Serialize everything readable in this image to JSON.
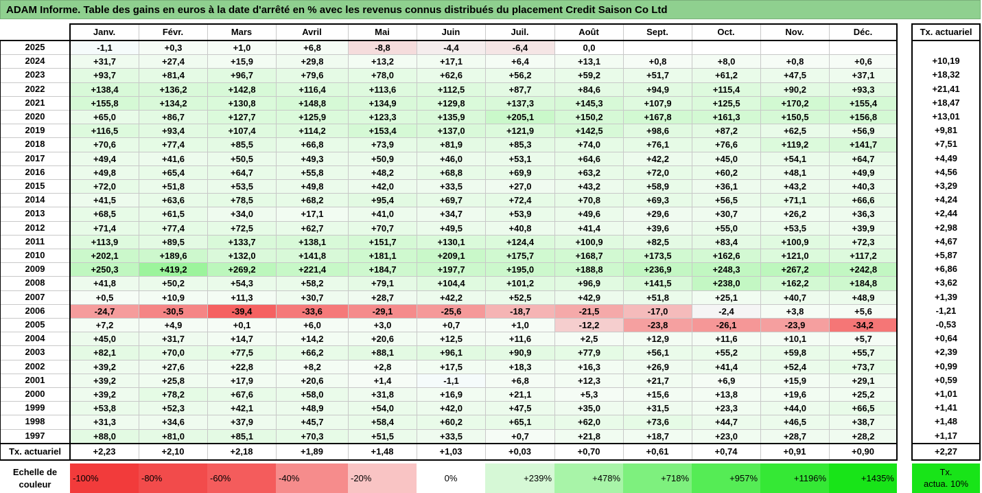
{
  "title": "ADAM Informe. Table des gains en euros à la date d'arrêté en % avec les revenus connus distribués du placement Credit Saison Co Ltd",
  "months": [
    "Janv.",
    "Févr.",
    "Mars",
    "Avril",
    "Mai",
    "Juin",
    "Juil.",
    "Août",
    "Sept.",
    "Oct.",
    "Nov.",
    "Déc."
  ],
  "rate_header": "Tx. actuariel",
  "rows": [
    {
      "year": "2025",
      "v": [
        "-1,1",
        "+0,3",
        "+1,0",
        "+6,8",
        "-8,8",
        "-4,4",
        "-6,4",
        "0,0",
        "",
        "",
        "",
        ""
      ],
      "r": ""
    },
    {
      "year": "2024",
      "v": [
        "+31,7",
        "+27,4",
        "+15,9",
        "+29,8",
        "+13,2",
        "+17,1",
        "+6,4",
        "+13,1",
        "+0,8",
        "+8,0",
        "+0,8",
        "+0,6"
      ],
      "r": "+10,19"
    },
    {
      "year": "2023",
      "v": [
        "+93,7",
        "+81,4",
        "+96,7",
        "+79,6",
        "+78,0",
        "+62,6",
        "+56,2",
        "+59,2",
        "+51,7",
        "+61,2",
        "+47,5",
        "+37,1"
      ],
      "r": "+18,32"
    },
    {
      "year": "2022",
      "v": [
        "+138,4",
        "+136,2",
        "+142,8",
        "+116,4",
        "+113,6",
        "+112,5",
        "+87,7",
        "+84,6",
        "+94,9",
        "+115,4",
        "+90,2",
        "+93,3"
      ],
      "r": "+21,41"
    },
    {
      "year": "2021",
      "v": [
        "+155,8",
        "+134,2",
        "+130,8",
        "+148,8",
        "+134,9",
        "+129,8",
        "+137,3",
        "+145,3",
        "+107,9",
        "+125,5",
        "+170,2",
        "+155,4"
      ],
      "r": "+18,47"
    },
    {
      "year": "2020",
      "v": [
        "+65,0",
        "+86,7",
        "+127,7",
        "+125,9",
        "+123,3",
        "+135,9",
        "+205,1",
        "+150,2",
        "+167,8",
        "+161,3",
        "+150,5",
        "+156,8"
      ],
      "r": "+13,01"
    },
    {
      "year": "2019",
      "v": [
        "+116,5",
        "+93,4",
        "+107,4",
        "+114,2",
        "+153,4",
        "+137,0",
        "+121,9",
        "+142,5",
        "+98,6",
        "+87,2",
        "+62,5",
        "+56,9"
      ],
      "r": "+9,81"
    },
    {
      "year": "2018",
      "v": [
        "+70,6",
        "+77,4",
        "+85,5",
        "+66,8",
        "+73,9",
        "+81,9",
        "+85,3",
        "+74,0",
        "+76,1",
        "+76,6",
        "+119,2",
        "+141,7"
      ],
      "r": "+7,51"
    },
    {
      "year": "2017",
      "v": [
        "+49,4",
        "+41,6",
        "+50,5",
        "+49,3",
        "+50,9",
        "+46,0",
        "+53,1",
        "+64,6",
        "+42,2",
        "+45,0",
        "+54,1",
        "+64,7"
      ],
      "r": "+4,49"
    },
    {
      "year": "2016",
      "v": [
        "+49,8",
        "+65,4",
        "+64,7",
        "+55,8",
        "+48,2",
        "+68,8",
        "+69,9",
        "+63,2",
        "+72,0",
        "+60,2",
        "+48,1",
        "+49,9"
      ],
      "r": "+4,56"
    },
    {
      "year": "2015",
      "v": [
        "+72,0",
        "+51,8",
        "+53,5",
        "+49,8",
        "+42,0",
        "+33,5",
        "+27,0",
        "+43,2",
        "+58,9",
        "+36,1",
        "+43,2",
        "+40,3"
      ],
      "r": "+3,29"
    },
    {
      "year": "2014",
      "v": [
        "+41,5",
        "+63,6",
        "+78,5",
        "+68,2",
        "+95,4",
        "+69,7",
        "+72,4",
        "+70,8",
        "+69,3",
        "+56,5",
        "+71,1",
        "+66,6"
      ],
      "r": "+4,24"
    },
    {
      "year": "2013",
      "v": [
        "+68,5",
        "+61,5",
        "+34,0",
        "+17,1",
        "+41,0",
        "+34,7",
        "+53,9",
        "+49,6",
        "+29,6",
        "+30,7",
        "+26,2",
        "+36,3"
      ],
      "r": "+2,44"
    },
    {
      "year": "2012",
      "v": [
        "+71,4",
        "+77,4",
        "+72,5",
        "+62,7",
        "+70,7",
        "+49,5",
        "+40,8",
        "+41,4",
        "+39,6",
        "+55,0",
        "+53,5",
        "+39,9"
      ],
      "r": "+2,98"
    },
    {
      "year": "2011",
      "v": [
        "+113,9",
        "+89,5",
        "+133,7",
        "+138,1",
        "+151,7",
        "+130,1",
        "+124,4",
        "+100,9",
        "+82,5",
        "+83,4",
        "+100,9",
        "+72,3"
      ],
      "r": "+4,67"
    },
    {
      "year": "2010",
      "v": [
        "+202,1",
        "+189,6",
        "+132,0",
        "+141,8",
        "+181,1",
        "+209,1",
        "+175,7",
        "+168,7",
        "+173,5",
        "+162,6",
        "+121,0",
        "+117,2"
      ],
      "r": "+5,87"
    },
    {
      "year": "2009",
      "v": [
        "+250,3",
        "+419,2",
        "+269,2",
        "+221,4",
        "+184,7",
        "+197,7",
        "+195,0",
        "+188,8",
        "+236,9",
        "+248,3",
        "+267,2",
        "+242,8"
      ],
      "r": "+6,86"
    },
    {
      "year": "2008",
      "v": [
        "+41,8",
        "+50,2",
        "+54,3",
        "+58,2",
        "+79,1",
        "+104,4",
        "+101,2",
        "+96,9",
        "+141,5",
        "+238,0",
        "+162,2",
        "+184,8"
      ],
      "r": "+3,62"
    },
    {
      "year": "2007",
      "v": [
        "+0,5",
        "+10,9",
        "+11,3",
        "+30,7",
        "+28,7",
        "+42,2",
        "+52,5",
        "+42,9",
        "+51,8",
        "+25,1",
        "+40,7",
        "+48,9"
      ],
      "r": "+1,39"
    },
    {
      "year": "2006",
      "v": [
        "-24,7",
        "-30,5",
        "-39,4",
        "-33,6",
        "-29,1",
        "-25,6",
        "-18,7",
        "-21,5",
        "-17,0",
        "-2,4",
        "+3,8",
        "+5,6"
      ],
      "r": "-1,21"
    },
    {
      "year": "2005",
      "v": [
        "+7,2",
        "+4,9",
        "+0,1",
        "+6,0",
        "+3,0",
        "+0,7",
        "+1,0",
        "-12,2",
        "-23,8",
        "-26,1",
        "-23,9",
        "-34,2"
      ],
      "r": "-0,53"
    },
    {
      "year": "2004",
      "v": [
        "+45,0",
        "+31,7",
        "+14,7",
        "+14,2",
        "+20,6",
        "+12,5",
        "+11,6",
        "+2,5",
        "+12,9",
        "+11,6",
        "+10,1",
        "+5,7"
      ],
      "r": "+0,64"
    },
    {
      "year": "2003",
      "v": [
        "+82,1",
        "+70,0",
        "+77,5",
        "+66,2",
        "+88,1",
        "+96,1",
        "+90,9",
        "+77,9",
        "+56,1",
        "+55,2",
        "+59,8",
        "+55,7"
      ],
      "r": "+2,39"
    },
    {
      "year": "2002",
      "v": [
        "+39,2",
        "+27,6",
        "+22,8",
        "+8,2",
        "+2,8",
        "+17,5",
        "+18,3",
        "+16,3",
        "+26,9",
        "+41,4",
        "+52,4",
        "+73,7"
      ],
      "r": "+0,99"
    },
    {
      "year": "2001",
      "v": [
        "+39,2",
        "+25,8",
        "+17,9",
        "+20,6",
        "+1,4",
        "-1,1",
        "+6,8",
        "+12,3",
        "+21,7",
        "+6,9",
        "+15,9",
        "+29,1"
      ],
      "r": "+0,59"
    },
    {
      "year": "2000",
      "v": [
        "+39,2",
        "+78,2",
        "+67,6",
        "+58,0",
        "+31,8",
        "+16,9",
        "+21,1",
        "+5,3",
        "+15,6",
        "+13,8",
        "+19,6",
        "+25,2"
      ],
      "r": "+1,01"
    },
    {
      "year": "1999",
      "v": [
        "+53,8",
        "+52,3",
        "+42,1",
        "+48,9",
        "+54,0",
        "+42,0",
        "+47,5",
        "+35,0",
        "+31,5",
        "+23,3",
        "+44,0",
        "+66,5"
      ],
      "r": "+1,41"
    },
    {
      "year": "1998",
      "v": [
        "+31,3",
        "+34,6",
        "+37,9",
        "+45,7",
        "+58,4",
        "+60,2",
        "+65,1",
        "+62,0",
        "+73,6",
        "+44,7",
        "+46,5",
        "+38,7"
      ],
      "r": "+1,48"
    },
    {
      "year": "1997",
      "v": [
        "+88,0",
        "+81,0",
        "+85,1",
        "+70,3",
        "+51,5",
        "+33,5",
        "+0,7",
        "+21,8",
        "+18,7",
        "+23,0",
        "+28,7",
        "+28,2"
      ],
      "r": "+1,17"
    }
  ],
  "summary": {
    "label": "Tx. actuariel",
    "v": [
      "+2,23",
      "+2,10",
      "+2,18",
      "+1,89",
      "+1,48",
      "+1,03",
      "+0,03",
      "+0,70",
      "+0,61",
      "+0,74",
      "+0,91",
      "+0,90"
    ],
    "r": "+2,27"
  },
  "scale": {
    "label_line1": "Echelle de",
    "label_line2": "couleur",
    "items": [
      {
        "text": "-100%",
        "color": "#f23b3b",
        "align": "left"
      },
      {
        "text": "-80%",
        "color": "#f24b4b",
        "align": "left"
      },
      {
        "text": "-60%",
        "color": "#f45c5c",
        "align": "left"
      },
      {
        "text": "-40%",
        "color": "#f68c8c",
        "align": "left"
      },
      {
        "text": "-20%",
        "color": "#f9c4c4",
        "align": "left"
      },
      {
        "text": "0%",
        "color": "#ffffff",
        "align": "center"
      },
      {
        "text": "+239%",
        "color": "#d6f8d6",
        "align": "right"
      },
      {
        "text": "+478%",
        "color": "#a8f4a8",
        "align": "right"
      },
      {
        "text": "+718%",
        "color": "#7ef07e",
        "align": "right"
      },
      {
        "text": "+957%",
        "color": "#55ec55",
        "align": "right"
      },
      {
        "text": "+1196%",
        "color": "#35e835",
        "align": "right"
      },
      {
        "text": "+1435%",
        "color": "#18e418",
        "align": "right"
      }
    ],
    "legend_line1": "Tx.",
    "legend_line2": "actua. 10%",
    "legend_color": "#18e418"
  }
}
